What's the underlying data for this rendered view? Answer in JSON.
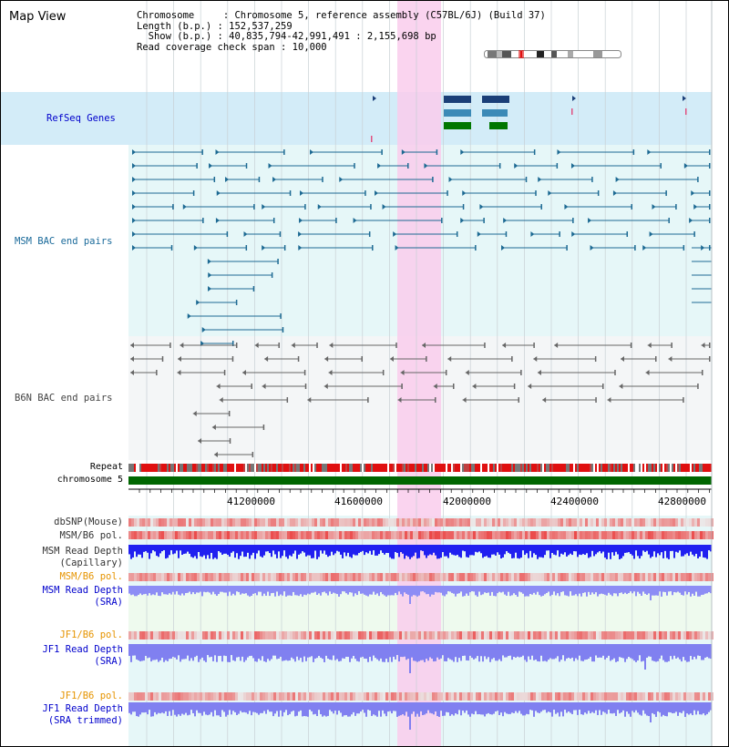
{
  "title": "Map View",
  "header": {
    "lines": [
      "Chromosome     : Chromosome 5, reference assembly (C57BL/6J) (Build 37)",
      "Length (b.p.) : 152,537,259",
      "  Show (b.p.) : 40,835,794-42,991,491 : 2,155,698 bp",
      "Read coverage check span : 10,000"
    ]
  },
  "colors": {
    "refseq_bg": "#d3ecf8",
    "bac_bg": "#e6f7f8",
    "b6n_bg": "#f4f6f7",
    "highlight": "#f9cdec",
    "refseq_label": "#0000cc",
    "msm_label": "#1a6a9a",
    "orange_label": "#e69400",
    "blue_label": "#0000cc",
    "chromosome": "#006600",
    "gene_dark": "#1b3f78",
    "gene_mid": "#3c8ab7",
    "gene_green": "#007700"
  },
  "tracks": {
    "refseq": "RefSeq Genes",
    "msm_bac": "MSM BAC end pairs",
    "b6n_bac": "B6N BAC end pairs",
    "repeat": "Repeat",
    "chromosome": "chromosome 5",
    "dbsnp": "dbSNP(Mouse)",
    "msm_b6_pol_1": "MSM/B6 pol.",
    "msm_read_depth_cap": "MSM Read Depth",
    "msm_read_depth_cap_sub": "(Capillary)",
    "msm_b6_pol_2": "MSM/B6 pol.",
    "msm_read_depth_sra": "MSM Read Depth",
    "msm_read_depth_sra_sub": "(SRA)",
    "jf1_b6_pol_1": "JF1/B6 pol.",
    "jf1_read_depth_sra": "JF1 Read Depth",
    "jf1_read_depth_sra_sub": "(SRA)",
    "jf1_b6_pol_2": "JF1/B6 pol.",
    "jf1_read_depth_trim": "JF1 Read Depth",
    "jf1_read_depth_trim_sub": "(SRA trimmed)"
  },
  "axis": {
    "ticks": [
      "41200000",
      "41600000",
      "42000000",
      "42400000",
      "42800000"
    ]
  }
}
